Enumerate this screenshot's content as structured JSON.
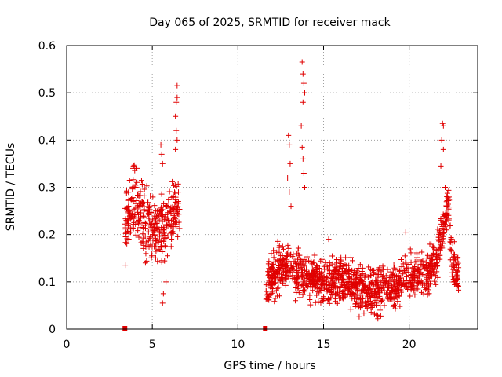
{
  "chart_data": {
    "type": "scatter",
    "title": "Day 065 of 2025, SRMTID for receiver mack",
    "xlabel": "GPS time / hours",
    "ylabel": "SRMTID / TECUs",
    "xlim": [
      0,
      24
    ],
    "ylim": [
      0,
      0.6
    ],
    "x_ticks": [
      0,
      5,
      10,
      15,
      20
    ],
    "x_tick_labels": [
      "0",
      "5",
      "10",
      "15",
      "20"
    ],
    "y_ticks": [
      0,
      0.1,
      0.2,
      0.3,
      0.4,
      0.5,
      0.6
    ],
    "y_tick_labels": [
      "0",
      "0.1",
      "0.2",
      "0.3",
      "0.4",
      "0.5",
      "0.6"
    ],
    "grid": true,
    "marker": "+",
    "color": "#e00000",
    "gap_markers": [
      {
        "x": 3.4,
        "y": 0
      },
      {
        "x": 11.6,
        "y": 0
      }
    ],
    "segments": [
      {
        "x_start": 3.4,
        "x_end": 6.6,
        "profile": [
          [
            3.4,
            0.22
          ],
          [
            3.8,
            0.26
          ],
          [
            4.0,
            0.27
          ],
          [
            4.5,
            0.23
          ],
          [
            5.0,
            0.2
          ],
          [
            5.5,
            0.21
          ],
          [
            6.0,
            0.22
          ],
          [
            6.3,
            0.26
          ],
          [
            6.6,
            0.25
          ]
        ],
        "spread": 0.05,
        "spikes": [
          {
            "x": 6.45,
            "y": 0.515
          },
          {
            "x": 6.45,
            "y": 0.49
          },
          {
            "x": 6.4,
            "y": 0.48
          },
          {
            "x": 6.35,
            "y": 0.45
          },
          {
            "x": 6.4,
            "y": 0.42
          },
          {
            "x": 6.45,
            "y": 0.4
          },
          {
            "x": 6.35,
            "y": 0.38
          },
          {
            "x": 5.5,
            "y": 0.39
          },
          {
            "x": 5.55,
            "y": 0.37
          },
          {
            "x": 5.6,
            "y": 0.35
          },
          {
            "x": 3.9,
            "y": 0.345
          },
          {
            "x": 4.1,
            "y": 0.34
          },
          {
            "x": 5.6,
            "y": 0.055
          },
          {
            "x": 5.65,
            "y": 0.075
          },
          {
            "x": 5.8,
            "y": 0.1
          }
        ]
      },
      {
        "x_start": 11.6,
        "x_end": 22.9,
        "profile": [
          [
            11.6,
            0.09
          ],
          [
            12.0,
            0.11
          ],
          [
            12.5,
            0.13
          ],
          [
            13.0,
            0.14
          ],
          [
            13.5,
            0.12
          ],
          [
            14.0,
            0.11
          ],
          [
            15.0,
            0.1
          ],
          [
            16.0,
            0.11
          ],
          [
            17.0,
            0.09
          ],
          [
            18.0,
            0.08
          ],
          [
            19.0,
            0.09
          ],
          [
            20.0,
            0.11
          ],
          [
            21.0,
            0.11
          ],
          [
            21.5,
            0.14
          ],
          [
            22.0,
            0.22
          ],
          [
            22.3,
            0.26
          ],
          [
            22.5,
            0.14
          ],
          [
            22.9,
            0.11
          ]
        ],
        "spread": 0.035,
        "spikes": [
          {
            "x": 13.75,
            "y": 0.565
          },
          {
            "x": 13.8,
            "y": 0.54
          },
          {
            "x": 13.85,
            "y": 0.52
          },
          {
            "x": 13.9,
            "y": 0.5
          },
          {
            "x": 13.8,
            "y": 0.48
          },
          {
            "x": 13.7,
            "y": 0.43
          },
          {
            "x": 13.75,
            "y": 0.385
          },
          {
            "x": 13.8,
            "y": 0.36
          },
          {
            "x": 13.85,
            "y": 0.33
          },
          {
            "x": 13.9,
            "y": 0.3
          },
          {
            "x": 12.95,
            "y": 0.41
          },
          {
            "x": 13.0,
            "y": 0.39
          },
          {
            "x": 13.05,
            "y": 0.35
          },
          {
            "x": 12.9,
            "y": 0.32
          },
          {
            "x": 13.0,
            "y": 0.29
          },
          {
            "x": 13.1,
            "y": 0.26
          },
          {
            "x": 21.95,
            "y": 0.435
          },
          {
            "x": 22.0,
            "y": 0.43
          },
          {
            "x": 21.9,
            "y": 0.4
          },
          {
            "x": 22.0,
            "y": 0.38
          },
          {
            "x": 21.85,
            "y": 0.345
          },
          {
            "x": 22.1,
            "y": 0.3
          },
          {
            "x": 22.2,
            "y": 0.28
          },
          {
            "x": 18.1,
            "y": 0.03
          },
          {
            "x": 18.3,
            "y": 0.04
          },
          {
            "x": 19.8,
            "y": 0.205
          },
          {
            "x": 15.3,
            "y": 0.19
          }
        ]
      }
    ]
  }
}
